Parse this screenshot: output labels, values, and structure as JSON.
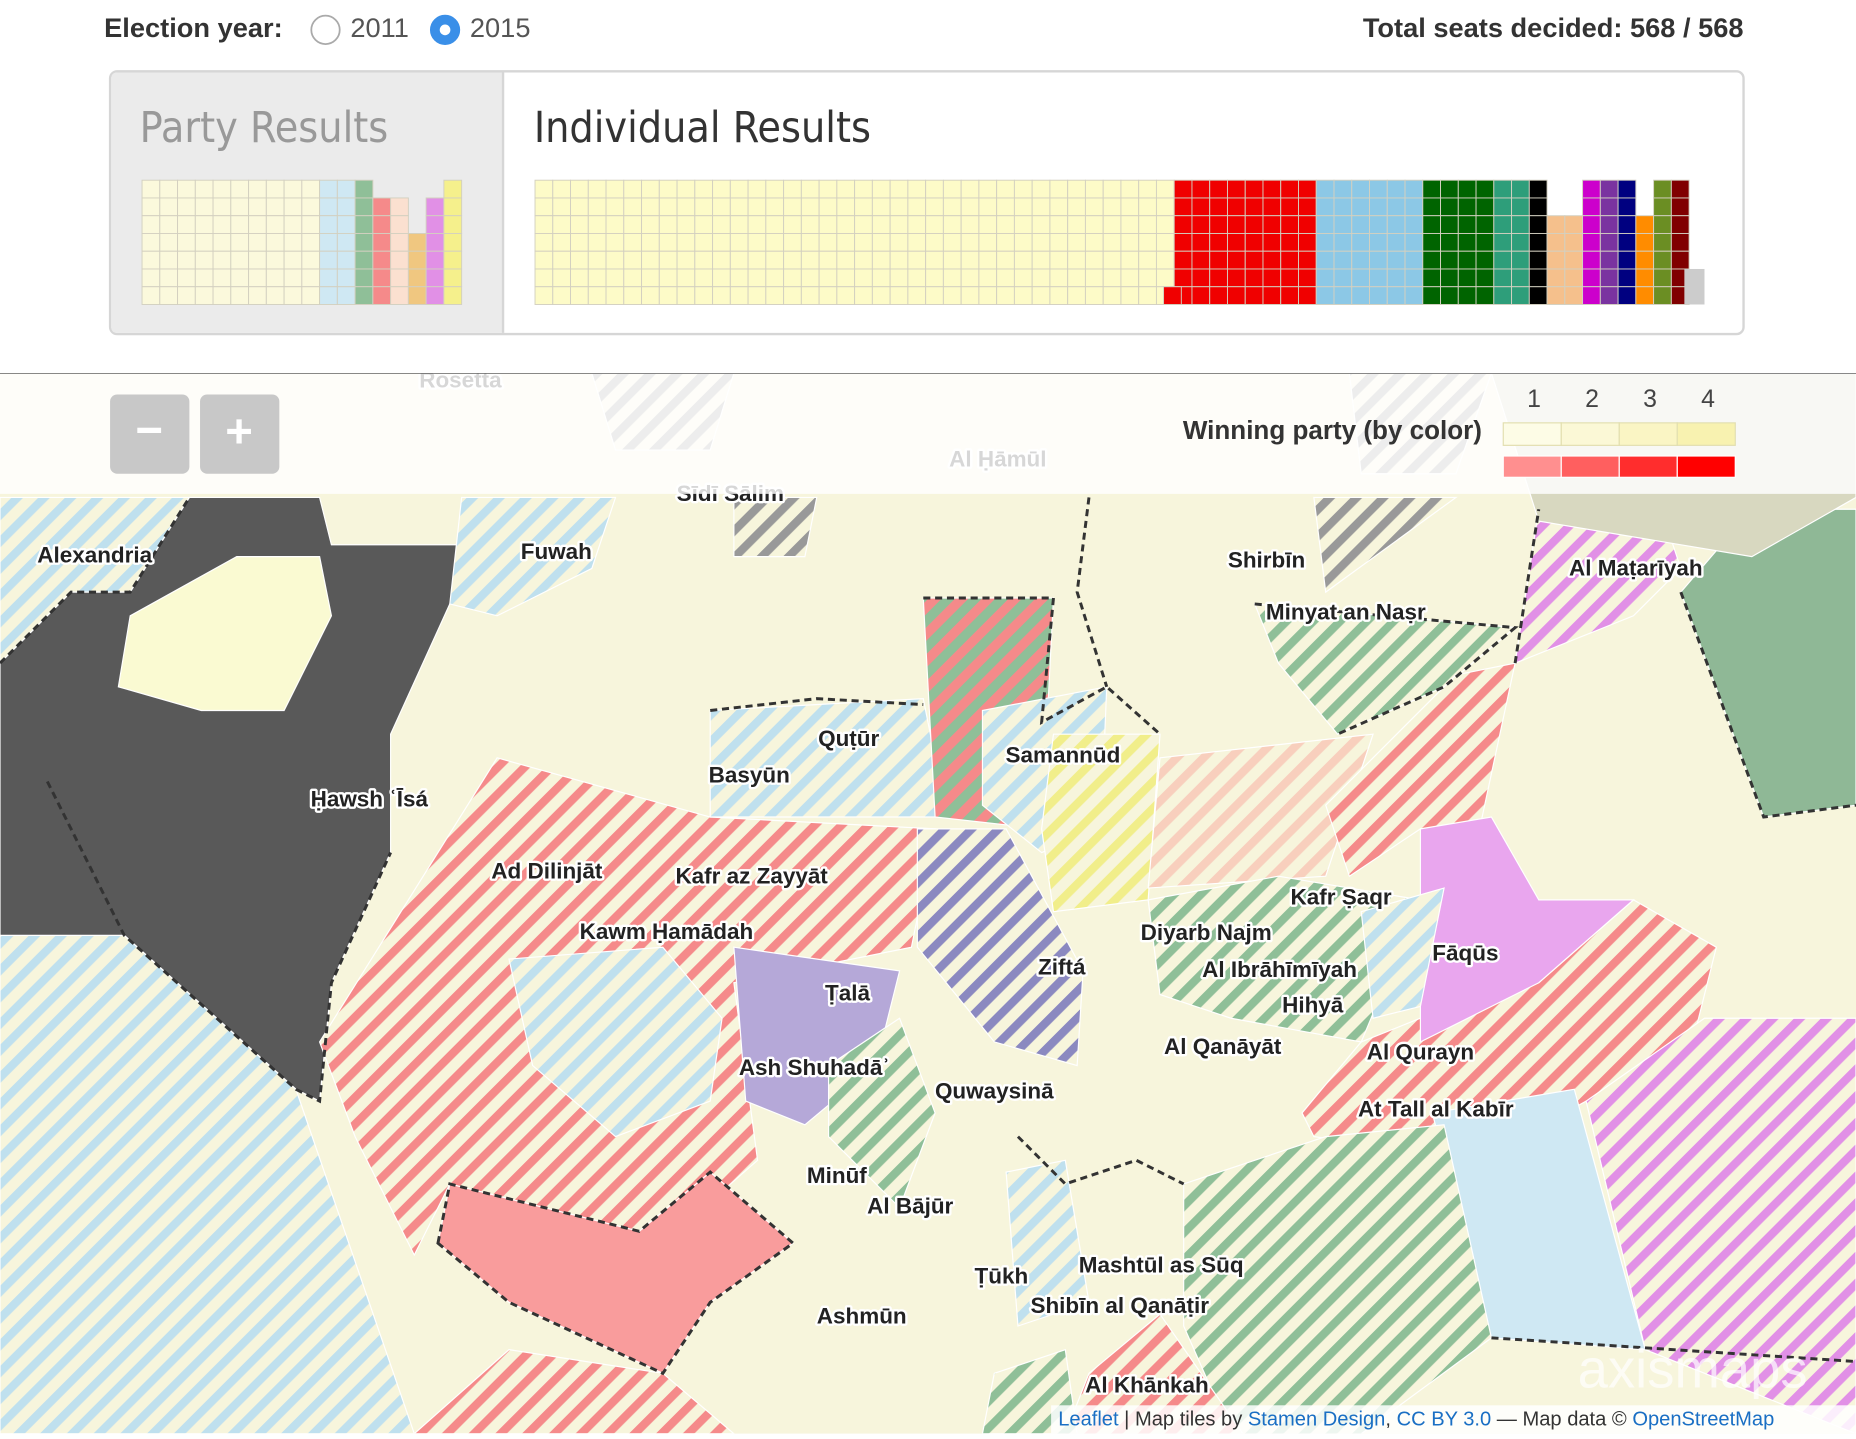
{
  "controls": {
    "election_year_label": "Election year:",
    "options": [
      "2011",
      "2015"
    ],
    "selected": 1,
    "total_seats": "Total seats decided: 568 / 568"
  },
  "tabs": [
    "Party Results",
    "Individual Results"
  ],
  "zoom": [
    "−",
    "+"
  ],
  "legend": {
    "title": "Winning party (by color)",
    "levels": [
      1,
      2,
      3,
      4
    ]
  },
  "map": {
    "labels": [
      "Rosetta",
      "Al Ḥāmūl",
      "Sīdī Sālim",
      "Alexandria",
      "Fuwah",
      "Shirbīn",
      "Al Maṭarīyah",
      "Minyat an Naṣr",
      "Quṭūr",
      "Samannūd",
      "Basyūn",
      "Ḥawsh ʿĪsá",
      "Ad Dilinjāt",
      "Kafr az Zayyāt",
      "Kafr Ṣaqr",
      "Kawm Ḥamādah",
      "Diyarb Najm",
      "Fāqūs",
      "Ziftá",
      "Al Ibrāhīmīyah",
      "Ṭalā",
      "Hihyā",
      "Al Qanāyāt",
      "Al Qurayn",
      "Ash Shuhadāʾ",
      "Quwaysinā",
      "At Tall al Kabīr",
      "Minūf",
      "Al Bājūr",
      "Ṭūkh",
      "Mashtūl as Sūq",
      "Shibīn al Qanāṭir",
      "Ashmūn",
      "Al Khānkah"
    ],
    "watermark": "axismaps",
    "attribution": [
      {
        "text": "Leaflet",
        "link": true
      },
      {
        "text": " | Map tiles by ",
        "link": false
      },
      {
        "text": "Stamen Design",
        "link": true
      },
      {
        "text": ", ",
        "link": false
      },
      {
        "text": "CC BY 3.0",
        "link": true
      },
      {
        "text": " — Map data © ",
        "link": false
      },
      {
        "text": "OpenStreetMap",
        "link": true
      }
    ]
  }
}
